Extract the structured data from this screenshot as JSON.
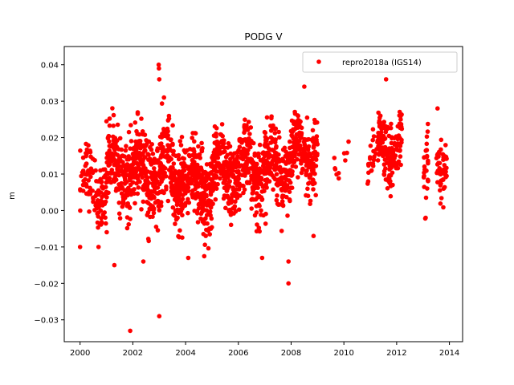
{
  "chart_data": {
    "type": "scatter",
    "title": "PODG V",
    "xlabel": "",
    "ylabel": "m",
    "xlim": [
      1999.4,
      2014.5
    ],
    "ylim": [
      -0.036,
      0.045
    ],
    "xticks": [
      2000,
      2002,
      2004,
      2006,
      2008,
      2010,
      2012,
      2014
    ],
    "yticks": [
      -0.03,
      -0.02,
      -0.01,
      0.0,
      0.01,
      0.02,
      0.03,
      0.04
    ],
    "ytick_labels": [
      "−0.03",
      "−0.02",
      "−0.01",
      "0.00",
      "0.01",
      "0.02",
      "0.03",
      "0.04"
    ],
    "grid": false,
    "legend_position": "top-right",
    "series": [
      {
        "name": "repro2018a (IGS14)",
        "color": "#ff0000",
        "marker": "circle",
        "segments": [
          {
            "x0": 2000.0,
            "x1": 2001.0,
            "center": 0.007,
            "spread": 0.008,
            "count": 110
          },
          {
            "x0": 2001.0,
            "x1": 2002.0,
            "center": 0.011,
            "spread": 0.009,
            "count": 200
          },
          {
            "x0": 2002.0,
            "x1": 2003.0,
            "center": 0.01,
            "spread": 0.01,
            "count": 220
          },
          {
            "x0": 2003.0,
            "x1": 2004.0,
            "center": 0.01,
            "spread": 0.01,
            "count": 230
          },
          {
            "x0": 2004.0,
            "x1": 2005.0,
            "center": 0.007,
            "spread": 0.01,
            "count": 220
          },
          {
            "x0": 2005.0,
            "x1": 2006.0,
            "center": 0.01,
            "spread": 0.009,
            "count": 210
          },
          {
            "x0": 2006.0,
            "x1": 2007.0,
            "center": 0.011,
            "spread": 0.009,
            "count": 210
          },
          {
            "x0": 2007.0,
            "x1": 2008.0,
            "center": 0.012,
            "spread": 0.009,
            "count": 200
          },
          {
            "x0": 2008.0,
            "x1": 2009.0,
            "center": 0.016,
            "spread": 0.008,
            "count": 200
          },
          {
            "x0": 2009.6,
            "x1": 2010.2,
            "center": 0.015,
            "spread": 0.004,
            "count": 10
          },
          {
            "x0": 2010.9,
            "x1": 2011.3,
            "center": 0.013,
            "spread": 0.005,
            "count": 25
          },
          {
            "x0": 2011.3,
            "x1": 2012.2,
            "center": 0.017,
            "spread": 0.008,
            "count": 170
          },
          {
            "x0": 2013.0,
            "x1": 2013.2,
            "center": 0.009,
            "spread": 0.008,
            "count": 30
          },
          {
            "x0": 2013.5,
            "x1": 2013.9,
            "center": 0.013,
            "spread": 0.007,
            "count": 55
          }
        ],
        "outliers": [
          {
            "x": 2000.0,
            "y": -0.01
          },
          {
            "x": 2000.7,
            "y": -0.01
          },
          {
            "x": 2001.3,
            "y": -0.015
          },
          {
            "x": 2001.9,
            "y": -0.033
          },
          {
            "x": 2002.4,
            "y": -0.014
          },
          {
            "x": 2002.98,
            "y": 0.04
          },
          {
            "x": 2002.99,
            "y": 0.039
          },
          {
            "x": 2003.0,
            "y": 0.036
          },
          {
            "x": 2003.0,
            "y": -0.029
          },
          {
            "x": 2004.1,
            "y": -0.013
          },
          {
            "x": 2006.9,
            "y": -0.013
          },
          {
            "x": 2007.9,
            "y": -0.02
          },
          {
            "x": 2007.9,
            "y": -0.014
          },
          {
            "x": 2008.5,
            "y": 0.034
          },
          {
            "x": 2008.85,
            "y": -0.007
          },
          {
            "x": 2011.6,
            "y": 0.036
          },
          {
            "x": 2013.1,
            "y": -0.002
          },
          {
            "x": 2013.55,
            "y": 0.028
          }
        ]
      }
    ]
  }
}
